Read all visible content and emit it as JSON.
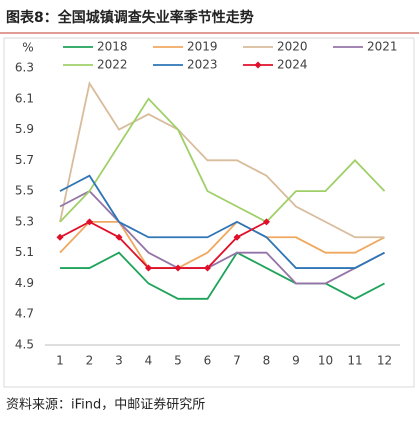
{
  "chart_data": {
    "type": "line",
    "title": "图表8：全国城镇调查失业率季节性走势",
    "y_label": "%",
    "source": "资料来源：iFind，中邮证券研究所",
    "categories": [
      "1",
      "2",
      "3",
      "4",
      "5",
      "6",
      "7",
      "8",
      "9",
      "10",
      "11",
      "12"
    ],
    "series": [
      {
        "name": "2018",
        "color": "#1fa35a",
        "values": [
          5.0,
          5.0,
          5.1,
          4.9,
          4.8,
          4.8,
          5.1,
          5.0,
          4.9,
          4.9,
          4.8,
          4.9
        ]
      },
      {
        "name": "2019",
        "color": "#f0a860",
        "values": [
          5.1,
          5.3,
          5.3,
          5.0,
          5.0,
          5.1,
          5.3,
          5.2,
          5.2,
          5.1,
          5.1,
          5.2
        ]
      },
      {
        "name": "2020",
        "color": "#d8bc9c",
        "values": [
          5.3,
          6.2,
          5.9,
          6.0,
          5.9,
          5.7,
          5.7,
          5.6,
          5.4,
          5.3,
          5.2,
          5.2
        ]
      },
      {
        "name": "2021",
        "color": "#9474a8",
        "values": [
          5.4,
          5.5,
          5.3,
          5.1,
          5.0,
          5.0,
          5.1,
          5.1,
          4.9,
          4.9,
          5.0,
          5.1
        ]
      },
      {
        "name": "2022",
        "color": "#9fd068",
        "values": [
          5.3,
          5.5,
          5.8,
          6.1,
          5.9,
          5.5,
          5.4,
          5.3,
          5.5,
          5.5,
          5.7,
          5.5
        ]
      },
      {
        "name": "2023",
        "color": "#2e75b6",
        "values": [
          5.5,
          5.6,
          5.3,
          5.2,
          5.2,
          5.2,
          5.3,
          5.2,
          5.0,
          5.0,
          5.0,
          5.1
        ]
      },
      {
        "name": "2024",
        "color": "#e0102a",
        "marker": "diamond",
        "values": [
          5.2,
          5.3,
          5.2,
          5.0,
          5.0,
          5.0,
          5.2,
          5.3,
          null,
          null,
          null,
          null
        ]
      }
    ],
    "ylim": [
      4.5,
      6.3
    ],
    "yticks": [
      4.5,
      4.7,
      4.9,
      5.1,
      5.3,
      5.5,
      5.7,
      5.9,
      6.1,
      6.3
    ],
    "grid": false
  }
}
